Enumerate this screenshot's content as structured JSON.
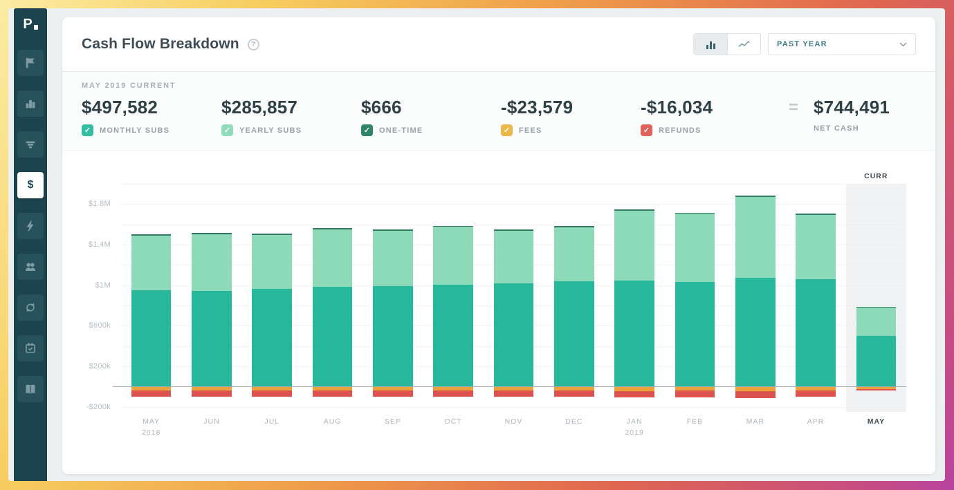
{
  "sidebar": {
    "logo": "P",
    "items": [
      {
        "icon": "flag"
      },
      {
        "icon": "bar-chart"
      },
      {
        "icon": "filter"
      },
      {
        "icon": "dollar",
        "active": true
      },
      {
        "icon": "lightning"
      },
      {
        "icon": "users"
      },
      {
        "icon": "sync"
      },
      {
        "icon": "calendar-check"
      },
      {
        "icon": "book"
      }
    ]
  },
  "header": {
    "title": "Cash Flow Breakdown",
    "help": "?",
    "toggle": {
      "options": [
        "bar-chart",
        "line-chart"
      ],
      "selected": "bar-chart"
    },
    "period_selector": "PAST YEAR"
  },
  "summary": {
    "period_label": "MAY 2019 CURRENT",
    "items": [
      {
        "value": "$497,582",
        "label": "MONTHLY SUBS",
        "color": "#35bda1"
      },
      {
        "value": "$285,857",
        "label": "YEARLY SUBS",
        "color": "#8fdcbb"
      },
      {
        "value": "$666",
        "label": "ONE-TIME",
        "color": "#2f8568"
      },
      {
        "value": "-$23,579",
        "label": "FEES",
        "color": "#edb84a"
      },
      {
        "value": "-$16,034",
        "label": "REFUNDS",
        "color": "#e2625a"
      }
    ],
    "equals": "=",
    "net": {
      "value": "$744,491",
      "label": "NET CASH"
    }
  },
  "chart_data": {
    "type": "bar",
    "stacked": true,
    "unit": "USD thousands",
    "ylim": [
      -250,
      2000
    ],
    "grid": true,
    "current_column_label": "CURR",
    "categories": [
      {
        "label": "MAY",
        "sublabel": "2018"
      },
      {
        "label": "JUN"
      },
      {
        "label": "JUL"
      },
      {
        "label": "AUG"
      },
      {
        "label": "SEP"
      },
      {
        "label": "OCT"
      },
      {
        "label": "NOV"
      },
      {
        "label": "DEC"
      },
      {
        "label": "JAN",
        "sublabel": "2019"
      },
      {
        "label": "FEB"
      },
      {
        "label": "MAR"
      },
      {
        "label": "APR"
      },
      {
        "label": "MAY",
        "current": true
      }
    ],
    "series": [
      {
        "name": "MONTHLY SUBS",
        "color": "#27b89c",
        "values": [
          950,
          945,
          965,
          985,
          990,
          1005,
          1020,
          1040,
          1045,
          1030,
          1070,
          1060,
          497.582
        ]
      },
      {
        "name": "YEARLY SUBS",
        "color": "#8cdab7",
        "values": [
          540,
          560,
          530,
          565,
          545,
          570,
          515,
          530,
          690,
          675,
          800,
          635,
          285.857
        ]
      },
      {
        "name": "ONE-TIME",
        "color": "#2f7a60",
        "values": [
          12,
          12,
          12,
          12,
          12,
          12,
          12,
          12,
          15,
          12,
          15,
          12,
          0.666
        ]
      },
      {
        "name": "FEES",
        "color": "#e9a23c",
        "values": [
          -40,
          -40,
          -40,
          -40,
          -40,
          -40,
          -42,
          -42,
          -45,
          -42,
          -45,
          -42,
          -23.579
        ]
      },
      {
        "name": "REFUNDS",
        "color": "#dc524e",
        "values": [
          -60,
          -60,
          -60,
          -60,
          -60,
          -60,
          -60,
          -60,
          -65,
          -62,
          -70,
          -60,
          -16.034
        ]
      }
    ],
    "yticks": [
      {
        "v": 2000
      },
      {
        "v": 1800,
        "label": "$1.8M"
      },
      {
        "v": 1600
      },
      {
        "v": 1400,
        "label": "$1.4M"
      },
      {
        "v": 1200
      },
      {
        "v": 1000,
        "label": "$1M"
      },
      {
        "v": 800
      },
      {
        "v": 600,
        "label": "$600k"
      },
      {
        "v": 400
      },
      {
        "v": 200,
        "label": "$200k"
      },
      {
        "v": 0,
        "zero": true
      },
      {
        "v": -200,
        "label": "-$200k"
      }
    ]
  }
}
